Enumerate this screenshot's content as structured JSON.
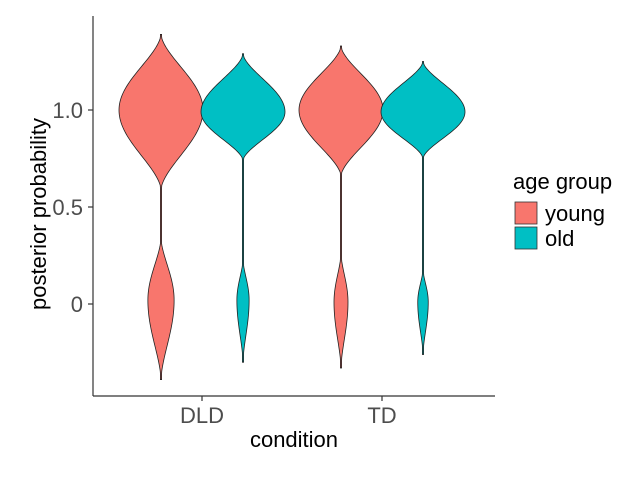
{
  "chart_data": {
    "type": "violin",
    "xlabel": "condition",
    "ylabel": "posterior probability",
    "categories": [
      "DLD",
      "TD"
    ],
    "y_ticks": [
      {
        "value": 0,
        "label": "0"
      },
      {
        "value": 0.5,
        "label": "0.5"
      },
      {
        "value": 1.0,
        "label": "1.0"
      }
    ],
    "ylim": [
      -0.47,
      1.5
    ],
    "grid": false,
    "legend": {
      "title": "age group",
      "position": "right",
      "entries": [
        {
          "name": "young",
          "color": "#F8766D"
        },
        {
          "name": "old",
          "color": "#00BFC4"
        }
      ]
    },
    "series": [
      {
        "name": "young",
        "color": "#F8766D",
        "violins": [
          {
            "category": "DLD",
            "min": -0.39,
            "max": 1.39,
            "upper_mode": {
              "center": 1.0,
              "lo": 0.59,
              "hi": 1.39,
              "half_width": 0.24
            },
            "lower_mode": {
              "center": 0.02,
              "lo": -0.39,
              "hi": 0.34,
              "half_width": 0.075
            }
          },
          {
            "category": "TD",
            "min": -0.33,
            "max": 1.33,
            "upper_mode": {
              "center": 1.0,
              "lo": 0.66,
              "hi": 1.33,
              "half_width": 0.24
            },
            "lower_mode": {
              "center": 0.01,
              "lo": -0.33,
              "hi": 0.26,
              "half_width": 0.04
            }
          }
        ]
      },
      {
        "name": "old",
        "color": "#00BFC4",
        "violins": [
          {
            "category": "DLD",
            "min": -0.3,
            "max": 1.29,
            "upper_mode": {
              "center": 0.99,
              "lo": 0.74,
              "hi": 1.29,
              "half_width": 0.24
            },
            "lower_mode": {
              "center": 0.02,
              "lo": -0.3,
              "hi": 0.23,
              "half_width": 0.035
            }
          },
          {
            "category": "TD",
            "min": -0.26,
            "max": 1.25,
            "upper_mode": {
              "center": 0.99,
              "lo": 0.75,
              "hi": 1.25,
              "half_width": 0.24
            },
            "lower_mode": {
              "center": 0.01,
              "lo": -0.26,
              "hi": 0.18,
              "half_width": 0.03
            }
          }
        ]
      }
    ]
  }
}
